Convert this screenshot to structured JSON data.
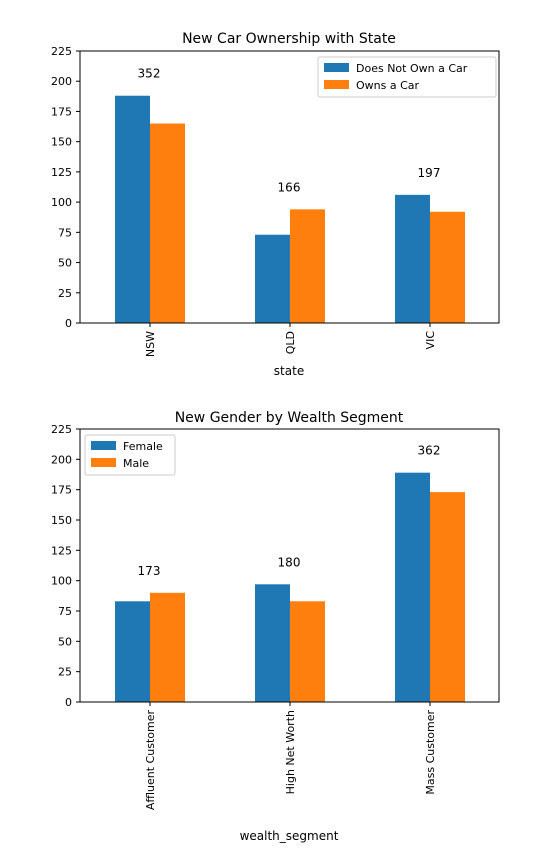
{
  "colors": {
    "series_0": "#1f77b4",
    "series_1": "#ff7f0e"
  },
  "chart_data": [
    {
      "type": "bar",
      "title": "New Car Ownership with State",
      "xlabel": "state",
      "ylabel": "",
      "ylim": [
        0,
        225
      ],
      "yticks": [
        0,
        25,
        50,
        75,
        100,
        125,
        150,
        175,
        200,
        225
      ],
      "categories": [
        "NSW",
        "QLD",
        "VIC"
      ],
      "series": [
        {
          "name": "Does Not Own a Car",
          "values": [
            188,
            73,
            106
          ]
        },
        {
          "name": "Owns a Car",
          "values": [
            165,
            94,
            92
          ]
        }
      ],
      "annotations": [
        "352",
        "166",
        "197"
      ],
      "legend": "top-right",
      "grid": false
    },
    {
      "type": "bar",
      "title": "New Gender by Wealth Segment",
      "xlabel": "wealth_segment",
      "ylabel": "",
      "ylim": [
        0,
        225
      ],
      "yticks": [
        0,
        25,
        50,
        75,
        100,
        125,
        150,
        175,
        200,
        225
      ],
      "categories": [
        "Affluent Customer",
        "High Net Worth",
        "Mass Customer"
      ],
      "series": [
        {
          "name": "Female",
          "values": [
            83,
            97,
            189
          ]
        },
        {
          "name": "Male",
          "values": [
            90,
            83,
            173
          ]
        }
      ],
      "annotations": [
        "173",
        "180",
        "362"
      ],
      "legend": "top-left",
      "grid": false
    }
  ]
}
